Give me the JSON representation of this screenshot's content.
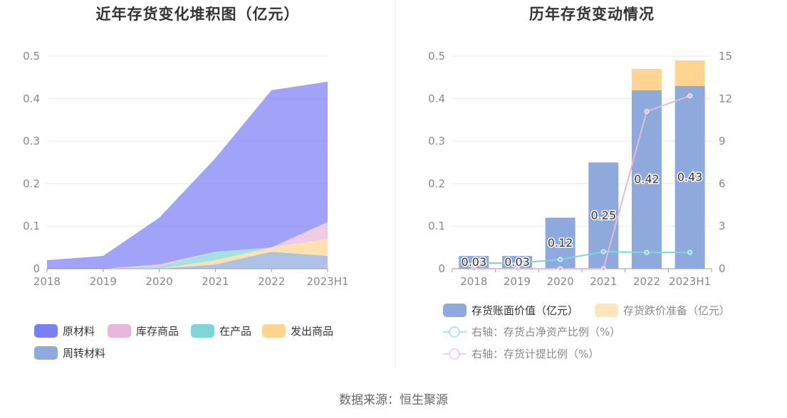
{
  "left_chart": {
    "title": "近年存货变化堆积图（亿元）",
    "chart_data": {
      "type": "area",
      "stacked": true,
      "categories": [
        "2018",
        "2019",
        "2020",
        "2021",
        "2022",
        "2023H1"
      ],
      "ylim": [
        0,
        0.5
      ],
      "yticks": [
        "0",
        "0.1",
        "0.2",
        "0.3",
        "0.4",
        "0.5"
      ],
      "grid": true,
      "legend_position": "bottom",
      "series": [
        {
          "name": "周转材料",
          "color": "#8eaadc",
          "values": [
            0,
            0,
            0,
            0.01,
            0.04,
            0.03
          ]
        },
        {
          "name": "发出商品",
          "color": "#ffd591",
          "values": [
            0,
            0,
            0,
            0.01,
            0.01,
            0.04
          ]
        },
        {
          "name": "在产品",
          "color": "#7fd6d8",
          "values": [
            0,
            0,
            0.005,
            0.02,
            0,
            0
          ]
        },
        {
          "name": "库存商品",
          "color": "#e8b8dc",
          "values": [
            0,
            0,
            0.005,
            0,
            0,
            0.04
          ]
        },
        {
          "name": "原材料",
          "color": "#7b7ff5",
          "values": [
            0.02,
            0.03,
            0.11,
            0.22,
            0.37,
            0.33
          ]
        }
      ],
      "legend_order": [
        "原材料",
        "库存商品",
        "在产品",
        "发出商品",
        "周转材料"
      ]
    }
  },
  "right_chart": {
    "title": "历年存货变动情况",
    "chart_data": {
      "type": "bar",
      "categories": [
        "2018",
        "2019",
        "2020",
        "2021",
        "2022",
        "2023H1"
      ],
      "ylim": [
        0,
        0.5
      ],
      "yticks": [
        "0",
        "0.1",
        "0.2",
        "0.3",
        "0.4",
        "0.5"
      ],
      "y2lim": [
        0,
        15
      ],
      "y2ticks": [
        "0",
        "3",
        "6",
        "9",
        "12",
        "15"
      ],
      "grid": true,
      "legend_position": "bottom",
      "bar_series": [
        {
          "name": "存货账面价值（亿元）",
          "color": "#8eaadc",
          "values": [
            0.03,
            0.03,
            0.12,
            0.25,
            0.42,
            0.43
          ],
          "labels": [
            "0.03",
            "0.03",
            "0.12",
            "0.25",
            "0.42",
            "0.43"
          ]
        },
        {
          "name": "存货跌价准备（亿元）",
          "color": "#ffd591",
          "values": [
            0,
            0,
            0,
            0,
            0.05,
            0.06
          ]
        }
      ],
      "line_series": [
        {
          "name": "右轴：存货占净资产比例（%）",
          "color": "#7fd6d8",
          "values": [
            0.4,
            0.4,
            0.65,
            1.2,
            1.15,
            1.15
          ]
        },
        {
          "name": "右轴：存货计提比例（%）",
          "color": "#e8b8dc",
          "values": [
            0,
            0,
            0,
            0,
            11.1,
            12.2
          ]
        }
      ]
    }
  },
  "source_text": "数据来源：恒生聚源"
}
